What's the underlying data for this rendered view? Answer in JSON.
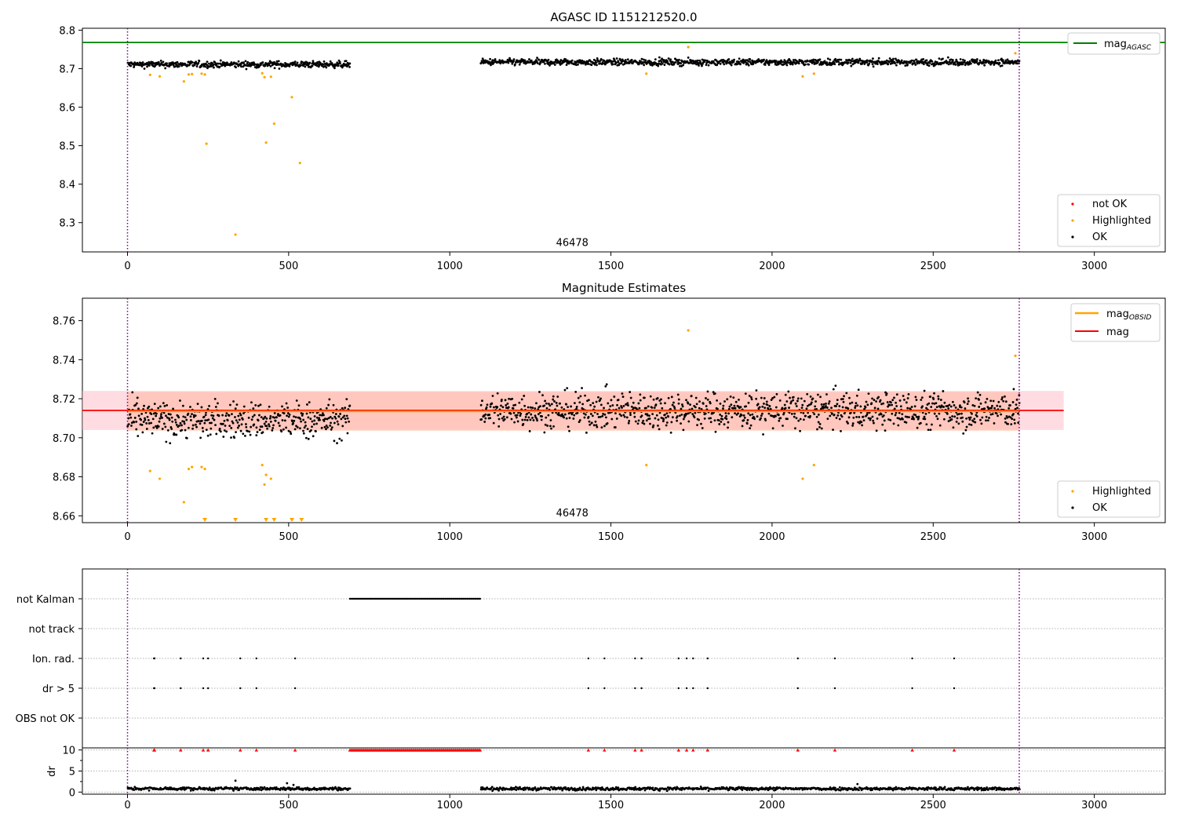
{
  "chart_data": [
    {
      "type": "scatter",
      "title": "AGASC ID 1151212520.0",
      "xlabel": "",
      "ylabel": "",
      "xlim": [
        -140,
        3220
      ],
      "ylim": [
        8.224,
        8.805
      ],
      "xticks": [
        0,
        500,
        1000,
        1500,
        2000,
        2500,
        3000
      ],
      "xtick_labels": [
        "0",
        "500",
        "1000",
        "1500",
        "2000",
        "2500",
        "3000"
      ],
      "yticks": [
        8.3,
        8.4,
        8.5,
        8.6,
        8.7,
        8.8
      ],
      "ytick_labels": [
        "8.3",
        "8.4",
        "8.5",
        "8.6",
        "8.7",
        "8.8"
      ],
      "vlines": [
        0,
        2767
      ],
      "hline": {
        "y": 8.768,
        "color": "#008000"
      },
      "annotation": {
        "x": 1380,
        "y": 8.235,
        "text": "46478"
      },
      "legend_upper": {
        "placement": "top-right",
        "entries": [
          {
            "label": "mag",
            "sub": "AGASC",
            "color": "#008000"
          }
        ]
      },
      "legend_lower": {
        "placement": "bottom-right",
        "entries": [
          {
            "label": "not OK",
            "color": "#ff0000"
          },
          {
            "label": "Highlighted",
            "color": "#ffa500"
          },
          {
            "label": "OK",
            "color": "#000000"
          }
        ]
      },
      "ok_segments": [
        {
          "x0": 0,
          "x1": 690,
          "y_mean": 8.711,
          "y_spread": 0.008
        },
        {
          "x0": 1095,
          "x1": 2767,
          "y_mean": 8.717,
          "y_spread": 0.008
        }
      ],
      "highlighted": [
        {
          "x": 70,
          "y": 8.684
        },
        {
          "x": 100,
          "y": 8.68
        },
        {
          "x": 175,
          "y": 8.667
        },
        {
          "x": 190,
          "y": 8.685
        },
        {
          "x": 200,
          "y": 8.686
        },
        {
          "x": 230,
          "y": 8.687
        },
        {
          "x": 240,
          "y": 8.685
        },
        {
          "x": 245,
          "y": 8.505
        },
        {
          "x": 335,
          "y": 8.269
        },
        {
          "x": 418,
          "y": 8.688
        },
        {
          "x": 425,
          "y": 8.678
        },
        {
          "x": 430,
          "y": 8.508
        },
        {
          "x": 445,
          "y": 8.679
        },
        {
          "x": 455,
          "y": 8.557
        },
        {
          "x": 510,
          "y": 8.626
        },
        {
          "x": 535,
          "y": 8.455
        },
        {
          "x": 1610,
          "y": 8.687
        },
        {
          "x": 1740,
          "y": 8.756
        },
        {
          "x": 2095,
          "y": 8.68
        },
        {
          "x": 2130,
          "y": 8.687
        },
        {
          "x": 2755,
          "y": 8.74
        }
      ]
    },
    {
      "type": "scatter",
      "title": "Magnitude Estimates",
      "xlabel": "",
      "ylabel": "",
      "xlim": [
        -140,
        3220
      ],
      "ylim": [
        8.6565,
        8.7715
      ],
      "xticks": [
        0,
        500,
        1000,
        1500,
        2000,
        2500,
        3000
      ],
      "xtick_labels": [
        "0",
        "500",
        "1000",
        "1500",
        "2000",
        "2500",
        "3000"
      ],
      "yticks": [
        8.66,
        8.68,
        8.7,
        8.72,
        8.74,
        8.76
      ],
      "ytick_labels": [
        "8.66",
        "8.68",
        "8.70",
        "8.72",
        "8.74",
        "8.76"
      ],
      "vlines": [
        0,
        2767
      ],
      "mag": 8.714,
      "mag_obsid": 8.7135,
      "band_outer": {
        "x0": -140,
        "x1": 2905,
        "y0": 8.704,
        "y1": 8.724,
        "color": "#ffc0cb"
      },
      "band_inner": {
        "x0": 0,
        "x1": 2767,
        "y0": 8.7035,
        "y1": 8.7235,
        "color": "#ffa07a"
      },
      "annotation": {
        "x": 1380,
        "y": 8.659,
        "text": "46478"
      },
      "legend_upper": {
        "placement": "top-right",
        "entries": [
          {
            "label": "mag",
            "sub": "OBSID",
            "color": "#ffa500"
          },
          {
            "label": "mag",
            "sub": "",
            "color": "#ff0000"
          }
        ]
      },
      "legend_lower": {
        "placement": "bottom-right",
        "entries": [
          {
            "label": "Highlighted",
            "color": "#ffa500"
          },
          {
            "label": "OK",
            "color": "#000000"
          }
        ]
      },
      "ok_segments": [
        {
          "x0": 0,
          "x1": 690,
          "y_mean": 8.709,
          "y_spread": 0.009
        },
        {
          "x0": 1095,
          "x1": 2767,
          "y_mean": 8.714,
          "y_spread": 0.009
        }
      ],
      "highlighted": [
        {
          "x": 70,
          "y": 8.683
        },
        {
          "x": 100,
          "y": 8.679
        },
        {
          "x": 175,
          "y": 8.667
        },
        {
          "x": 190,
          "y": 8.684
        },
        {
          "x": 200,
          "y": 8.685
        },
        {
          "x": 230,
          "y": 8.685
        },
        {
          "x": 240,
          "y": 8.684
        },
        {
          "x": 418,
          "y": 8.686
        },
        {
          "x": 425,
          "y": 8.676
        },
        {
          "x": 430,
          "y": 8.681
        },
        {
          "x": 445,
          "y": 8.679
        },
        {
          "x": 1610,
          "y": 8.686
        },
        {
          "x": 1740,
          "y": 8.755
        },
        {
          "x": 2095,
          "y": 8.679
        },
        {
          "x": 2130,
          "y": 8.686
        },
        {
          "x": 2755,
          "y": 8.742
        }
      ],
      "off_scale_low": [
        240,
        335,
        430,
        455,
        510,
        540
      ]
    },
    {
      "type": "scatter",
      "title": "",
      "xlabel": "",
      "ylabel": "",
      "xlim": [
        -140,
        3220
      ],
      "flag_rows": [
        "not Kalman",
        "not track",
        "Ion. rad.",
        "dr > 5",
        "OBS not OK"
      ],
      "not_kalman": {
        "x0": 690,
        "x1": 1095
      },
      "ion_rad_x": [
        82,
        84,
        165,
        235,
        250,
        350,
        400,
        520,
        1430,
        1480,
        1575,
        1595,
        1710,
        1735,
        1755,
        1800,
        2080,
        2195,
        2435,
        2565
      ],
      "dr_gt5_x": [
        82,
        84,
        165,
        235,
        250,
        350,
        400,
        520,
        1430,
        1480,
        1575,
        1595,
        1710,
        1735,
        1755,
        1800,
        2080,
        2195,
        2435,
        2565
      ],
      "vlines": [
        0,
        2767
      ]
    },
    {
      "type": "scatter",
      "title": "",
      "xlabel": "",
      "ylabel": "dr",
      "xlim": [
        -140,
        3220
      ],
      "ylim": [
        -0.5,
        10.5
      ],
      "yticks": [
        0,
        5,
        10
      ],
      "ytick_labels": [
        "0",
        "5",
        "10"
      ],
      "xticks": [
        0,
        500,
        1000,
        1500,
        2000,
        2500,
        3000
      ],
      "xtick_labels": [
        "0",
        "500",
        "1000",
        "1500",
        "2000",
        "2500",
        "3000"
      ],
      "vlines": [
        0,
        2767
      ],
      "red_marker_y": 10,
      "ok_segments": [
        {
          "x0": 0,
          "x1": 690,
          "y_mean": 0.8,
          "y_spread": 0.35
        },
        {
          "x0": 1095,
          "x1": 2767,
          "y_mean": 0.8,
          "y_spread": 0.35
        }
      ],
      "outliers": [
        {
          "x": 335,
          "y": 2.7
        },
        {
          "x": 495,
          "y": 2.1
        },
        {
          "x": 515,
          "y": 1.7
        },
        {
          "x": 2265,
          "y": 1.9
        }
      ]
    }
  ]
}
